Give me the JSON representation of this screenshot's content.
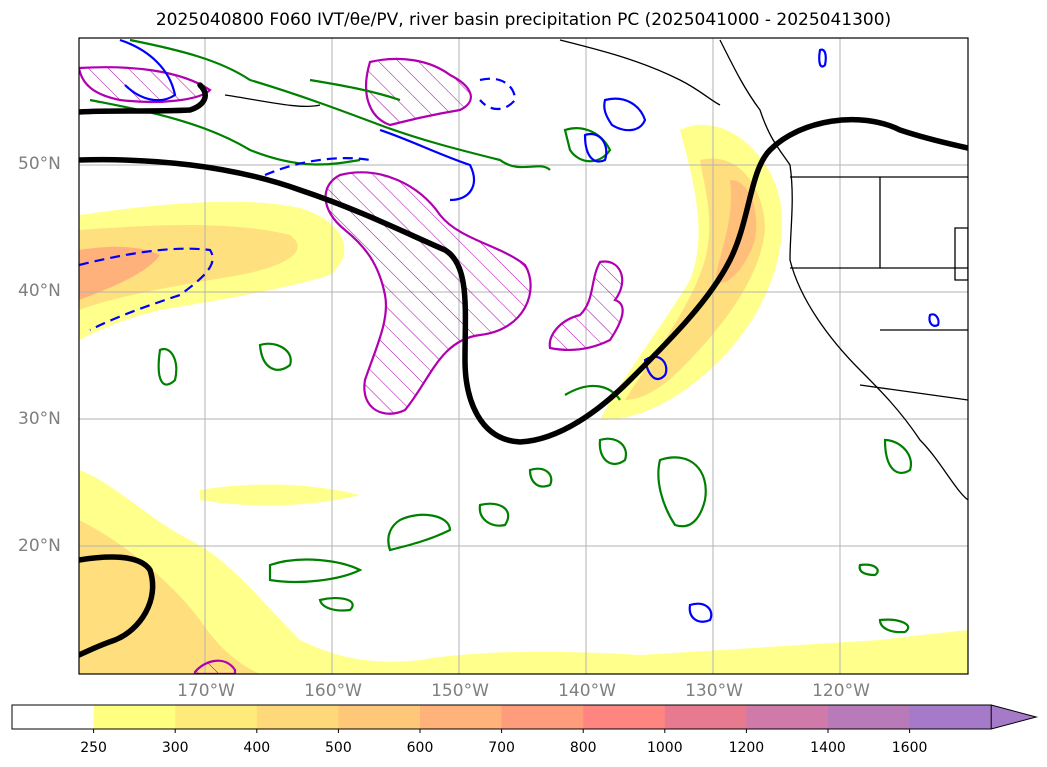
{
  "title": "2025040800 F060 IVT/θe/PV, river basin precipitation PC (2025041000 - 2025041300)",
  "map": {
    "lat_ticks": [
      {
        "label": "50°N",
        "value": 50
      },
      {
        "label": "40°N",
        "value": 40
      },
      {
        "label": "30°N",
        "value": 30
      },
      {
        "label": "20°N",
        "value": 20
      }
    ],
    "lon_ticks": [
      {
        "label": "170°W",
        "value": -170
      },
      {
        "label": "160°W",
        "value": -160
      },
      {
        "label": "150°W",
        "value": -150
      },
      {
        "label": "140°W",
        "value": -140
      },
      {
        "label": "130°W",
        "value": -130
      },
      {
        "label": "120°W",
        "value": -120
      }
    ]
  },
  "colorbar": {
    "ticks": [
      "250",
      "300",
      "400",
      "500",
      "600",
      "700",
      "800",
      "1000",
      "1200",
      "1400",
      "1600"
    ],
    "colors": [
      "#ffffff",
      "#ffff80",
      "#ffeb7a",
      "#ffd87a",
      "#ffc878",
      "#ffb27a",
      "#ff9c7c",
      "#ff8580",
      "#e87a90",
      "#cf7aa8",
      "#b87ab8",
      "#a57ac8"
    ]
  }
}
